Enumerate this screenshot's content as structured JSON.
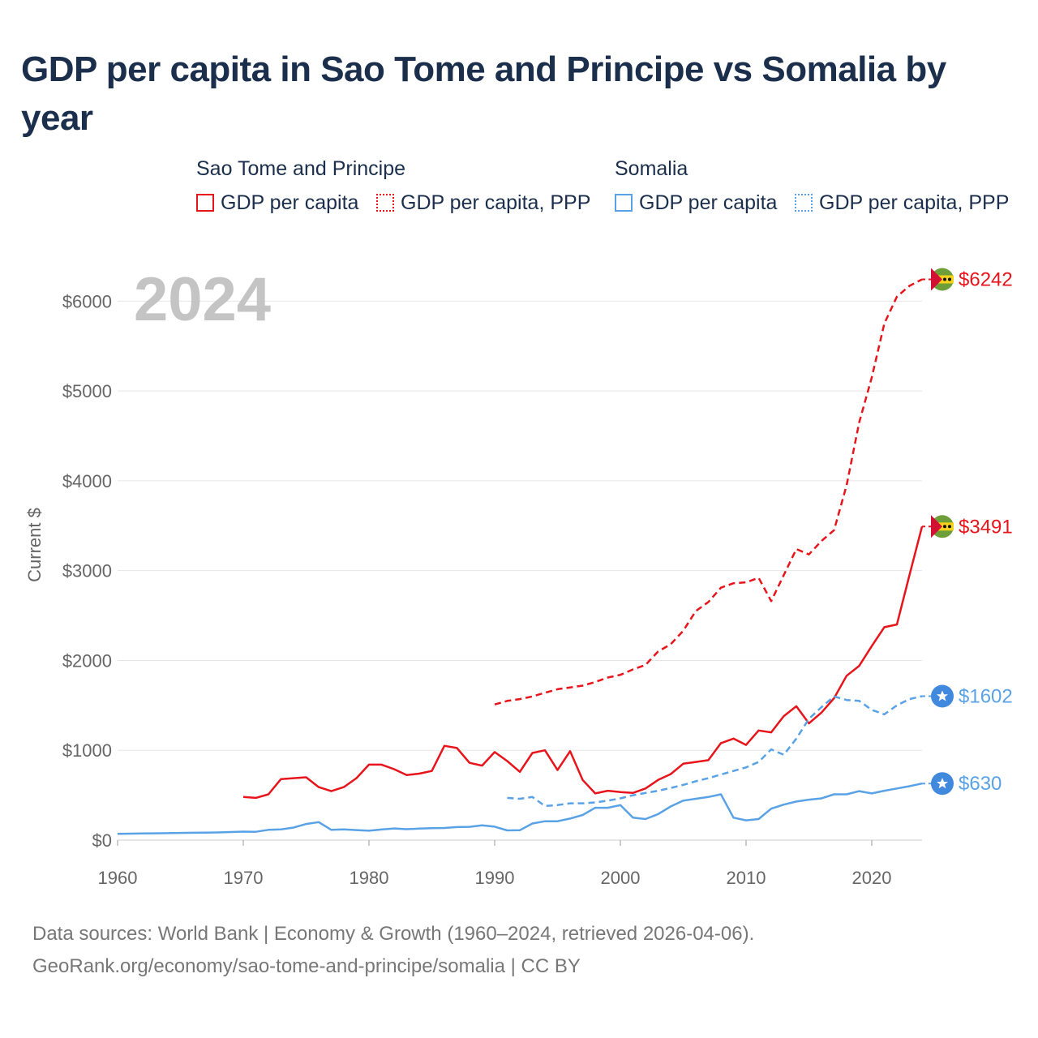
{
  "title": "GDP per capita in Sao Tome and Principe vs Somalia by year",
  "legend": {
    "groups": [
      {
        "name": "Sao Tome and Principe",
        "color": "#e8141b",
        "items": [
          {
            "label": "GDP per capita",
            "style": "solid"
          },
          {
            "label": "GDP per capita, PPP",
            "style": "dotted"
          }
        ]
      },
      {
        "name": "Somalia",
        "color": "#5aa2e6",
        "items": [
          {
            "label": "GDP per capita",
            "style": "solid"
          },
          {
            "label": "GDP per capita, PPP",
            "style": "dotted"
          }
        ]
      }
    ]
  },
  "year_label": "2024",
  "icons": {
    "stp": "sao-tome-flag-icon",
    "som": "somalia-flag-icon"
  },
  "chart_data": {
    "type": "line",
    "title": "GDP per capita in Sao Tome and Principe vs Somalia by year",
    "xlabel": "",
    "ylabel": "Current $",
    "xlim": [
      1960,
      2024
    ],
    "ylim": [
      0,
      6400
    ],
    "xticks": [
      1960,
      1970,
      1980,
      1990,
      2000,
      2010,
      2020
    ],
    "yticks": [
      0,
      1000,
      2000,
      3000,
      4000,
      5000,
      6000
    ],
    "ytick_labels": [
      "$0",
      "$1000",
      "$2000",
      "$3000",
      "$4000",
      "$5000",
      "$6000"
    ],
    "grid": true,
    "series": [
      {
        "name": "Sao Tome and Principe GDP per capita",
        "color": "#e8141b",
        "dash": "solid",
        "end_label": "$3491",
        "flag": "stp",
        "x": [
          1970,
          1971,
          1972,
          1973,
          1974,
          1975,
          1976,
          1977,
          1978,
          1979,
          1980,
          1981,
          1982,
          1983,
          1984,
          1985,
          1986,
          1987,
          1988,
          1989,
          1990,
          1991,
          1992,
          1993,
          1994,
          1995,
          1996,
          1997,
          1998,
          1999,
          2000,
          2001,
          2002,
          2003,
          2004,
          2005,
          2006,
          2007,
          2008,
          2009,
          2010,
          2011,
          2012,
          2013,
          2014,
          2015,
          2016,
          2017,
          2018,
          2019,
          2020,
          2021,
          2022,
          2023,
          2024
        ],
        "y": [
          480,
          470,
          510,
          680,
          690,
          700,
          590,
          545,
          590,
          690,
          840,
          840,
          790,
          725,
          740,
          770,
          1050,
          1025,
          860,
          830,
          980,
          880,
          760,
          970,
          1000,
          780,
          990,
          670,
          520,
          550,
          535,
          525,
          575,
          670,
          735,
          850,
          870,
          890,
          1080,
          1130,
          1060,
          1220,
          1200,
          1380,
          1490,
          1300,
          1420,
          1580,
          1830,
          1940,
          2160,
          2370,
          2400,
          2950,
          3491
        ]
      },
      {
        "name": "Sao Tome and Principe GDP per capita, PPP",
        "color": "#e8141b",
        "dash": "dashed",
        "end_label": "$6242",
        "flag": "stp",
        "x": [
          1990,
          1991,
          1992,
          1993,
          1994,
          1995,
          1996,
          1997,
          1998,
          1999,
          2000,
          2001,
          2002,
          2003,
          2004,
          2005,
          2006,
          2007,
          2008,
          2009,
          2010,
          2011,
          2012,
          2013,
          2014,
          2015,
          2016,
          2017,
          2018,
          2019,
          2020,
          2021,
          2022,
          2023,
          2024
        ],
        "y": [
          1510,
          1550,
          1570,
          1600,
          1640,
          1680,
          1700,
          1720,
          1760,
          1810,
          1840,
          1900,
          1950,
          2100,
          2180,
          2330,
          2550,
          2650,
          2810,
          2860,
          2870,
          2920,
          2660,
          2950,
          3240,
          3180,
          3330,
          3450,
          3950,
          4650,
          5150,
          5750,
          6050,
          6170,
          6242
        ]
      },
      {
        "name": "Somalia GDP per capita",
        "color": "#5aa2e6",
        "dash": "solid",
        "end_label": "$630",
        "flag": "som",
        "x": [
          1960,
          1961,
          1962,
          1963,
          1964,
          1965,
          1966,
          1967,
          1968,
          1969,
          1970,
          1971,
          1972,
          1973,
          1974,
          1975,
          1976,
          1977,
          1978,
          1979,
          1980,
          1981,
          1982,
          1983,
          1984,
          1985,
          1986,
          1987,
          1988,
          1989,
          1990,
          1991,
          1992,
          1993,
          1994,
          1995,
          1996,
          1997,
          1998,
          1999,
          2000,
          2001,
          2002,
          2003,
          2004,
          2005,
          2006,
          2007,
          2008,
          2009,
          2010,
          2011,
          2012,
          2013,
          2014,
          2015,
          2016,
          2017,
          2018,
          2019,
          2020,
          2021,
          2022,
          2023,
          2024
        ],
        "y": [
          70,
          72,
          74,
          76,
          78,
          80,
          82,
          84,
          86,
          90,
          95,
          93,
          115,
          120,
          140,
          180,
          200,
          115,
          120,
          112,
          105,
          118,
          130,
          122,
          128,
          133,
          135,
          145,
          148,
          165,
          150,
          108,
          110,
          185,
          210,
          210,
          240,
          280,
          360,
          360,
          390,
          250,
          235,
          290,
          375,
          440,
          460,
          480,
          510,
          250,
          220,
          235,
          350,
          395,
          430,
          450,
          465,
          510,
          510,
          545,
          520,
          550,
          575,
          600,
          630
        ]
      },
      {
        "name": "Somalia GDP per capita, PPP",
        "color": "#5aa2e6",
        "dash": "dashed",
        "end_label": "$1602",
        "flag": "som",
        "x": [
          1991,
          1992,
          1993,
          1994,
          1995,
          1996,
          1997,
          1998,
          1999,
          2000,
          2001,
          2002,
          2003,
          2004,
          2005,
          2006,
          2007,
          2008,
          2009,
          2010,
          2011,
          2012,
          2013,
          2014,
          2015,
          2016,
          2017,
          2018,
          2019,
          2020,
          2021,
          2022,
          2023,
          2024
        ],
        "y": [
          470,
          460,
          480,
          380,
          390,
          410,
          410,
          420,
          440,
          465,
          500,
          525,
          550,
          580,
          615,
          655,
          690,
          730,
          770,
          810,
          870,
          1010,
          950,
          1130,
          1350,
          1480,
          1600,
          1560,
          1550,
          1450,
          1400,
          1500,
          1570,
          1602
        ]
      }
    ]
  },
  "footer": {
    "line1": "Data sources: World Bank | Economy & Growth (1960–2024, retrieved 2026-04-06).",
    "line2": "GeoRank.org/economy/sao-tome-and-principe/somalia | CC BY"
  }
}
